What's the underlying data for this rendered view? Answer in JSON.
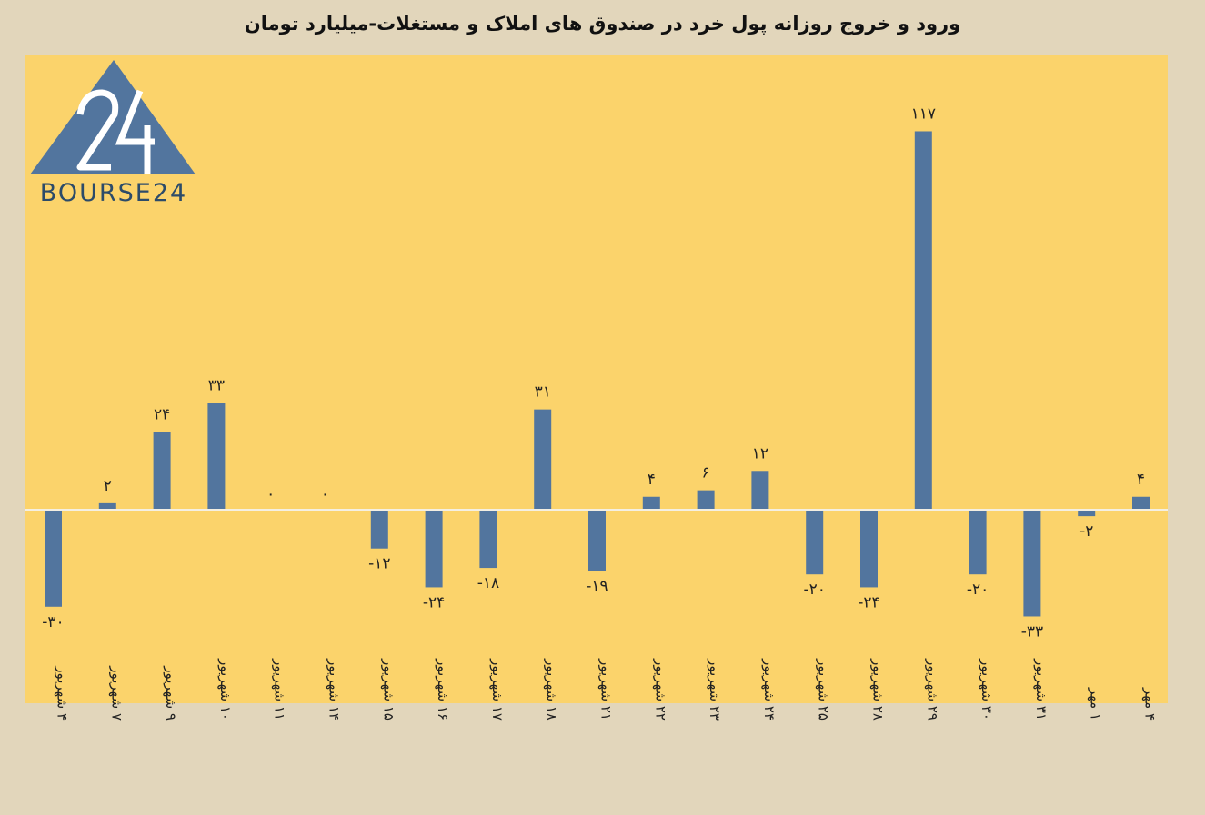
{
  "title": "ورود و خروج روزانه پول خرد در صندوق های املاک و مستغلات-میلیارد تومان",
  "logo": {
    "text": "BOURSE24",
    "mark": "24"
  },
  "colors": {
    "background": "#e2d6bb",
    "plot_background": "#fbd36b",
    "bar": "#52759e",
    "zero_line": "#f4efe2"
  },
  "chart_data": {
    "type": "bar",
    "title": "ورود و خروج روزانه پول خرد در صندوق های املاک و مستغلات-میلیارد تومان",
    "categories": [
      "۴ شهریور",
      "۷ شهریور",
      "۹ شهریور",
      "۱۰ شهریور",
      "۱۱ شهریور",
      "۱۴ شهریور",
      "۱۵ شهریور",
      "۱۶ شهریور",
      "۱۷ شهریور",
      "۱۸ شهریور",
      "۲۱ شهریور",
      "۲۲ شهریور",
      "۲۳ شهریور",
      "۲۴ شهریور",
      "۲۵ شهریور",
      "۲۸ شهریور",
      "۲۹ شهریور",
      "۳۰ شهریور",
      "۳۱ شهریور",
      "۱ مهر",
      "۴ مهر"
    ],
    "values": [
      -30,
      2,
      24,
      33,
      0,
      0,
      -12,
      -24,
      -18,
      31,
      -19,
      4,
      6,
      12,
      -20,
      -24,
      117,
      -20,
      -33,
      -2,
      4
    ],
    "value_labels": [
      "-۳۰",
      "۲",
      "۲۴",
      "۳۳",
      "۰",
      "۰",
      "-۱۲",
      "-۲۴",
      "-۱۸",
      "۳۱",
      "-۱۹",
      "۴",
      "۶",
      "۱۲",
      "-۲۰",
      "-۲۴",
      "۱۱۷",
      "-۲۰",
      "-۳۳",
      "-۲",
      "۴"
    ],
    "ylim": [
      -60,
      140
    ],
    "grid": false,
    "legend": "none",
    "xlabel": "",
    "ylabel": ""
  }
}
